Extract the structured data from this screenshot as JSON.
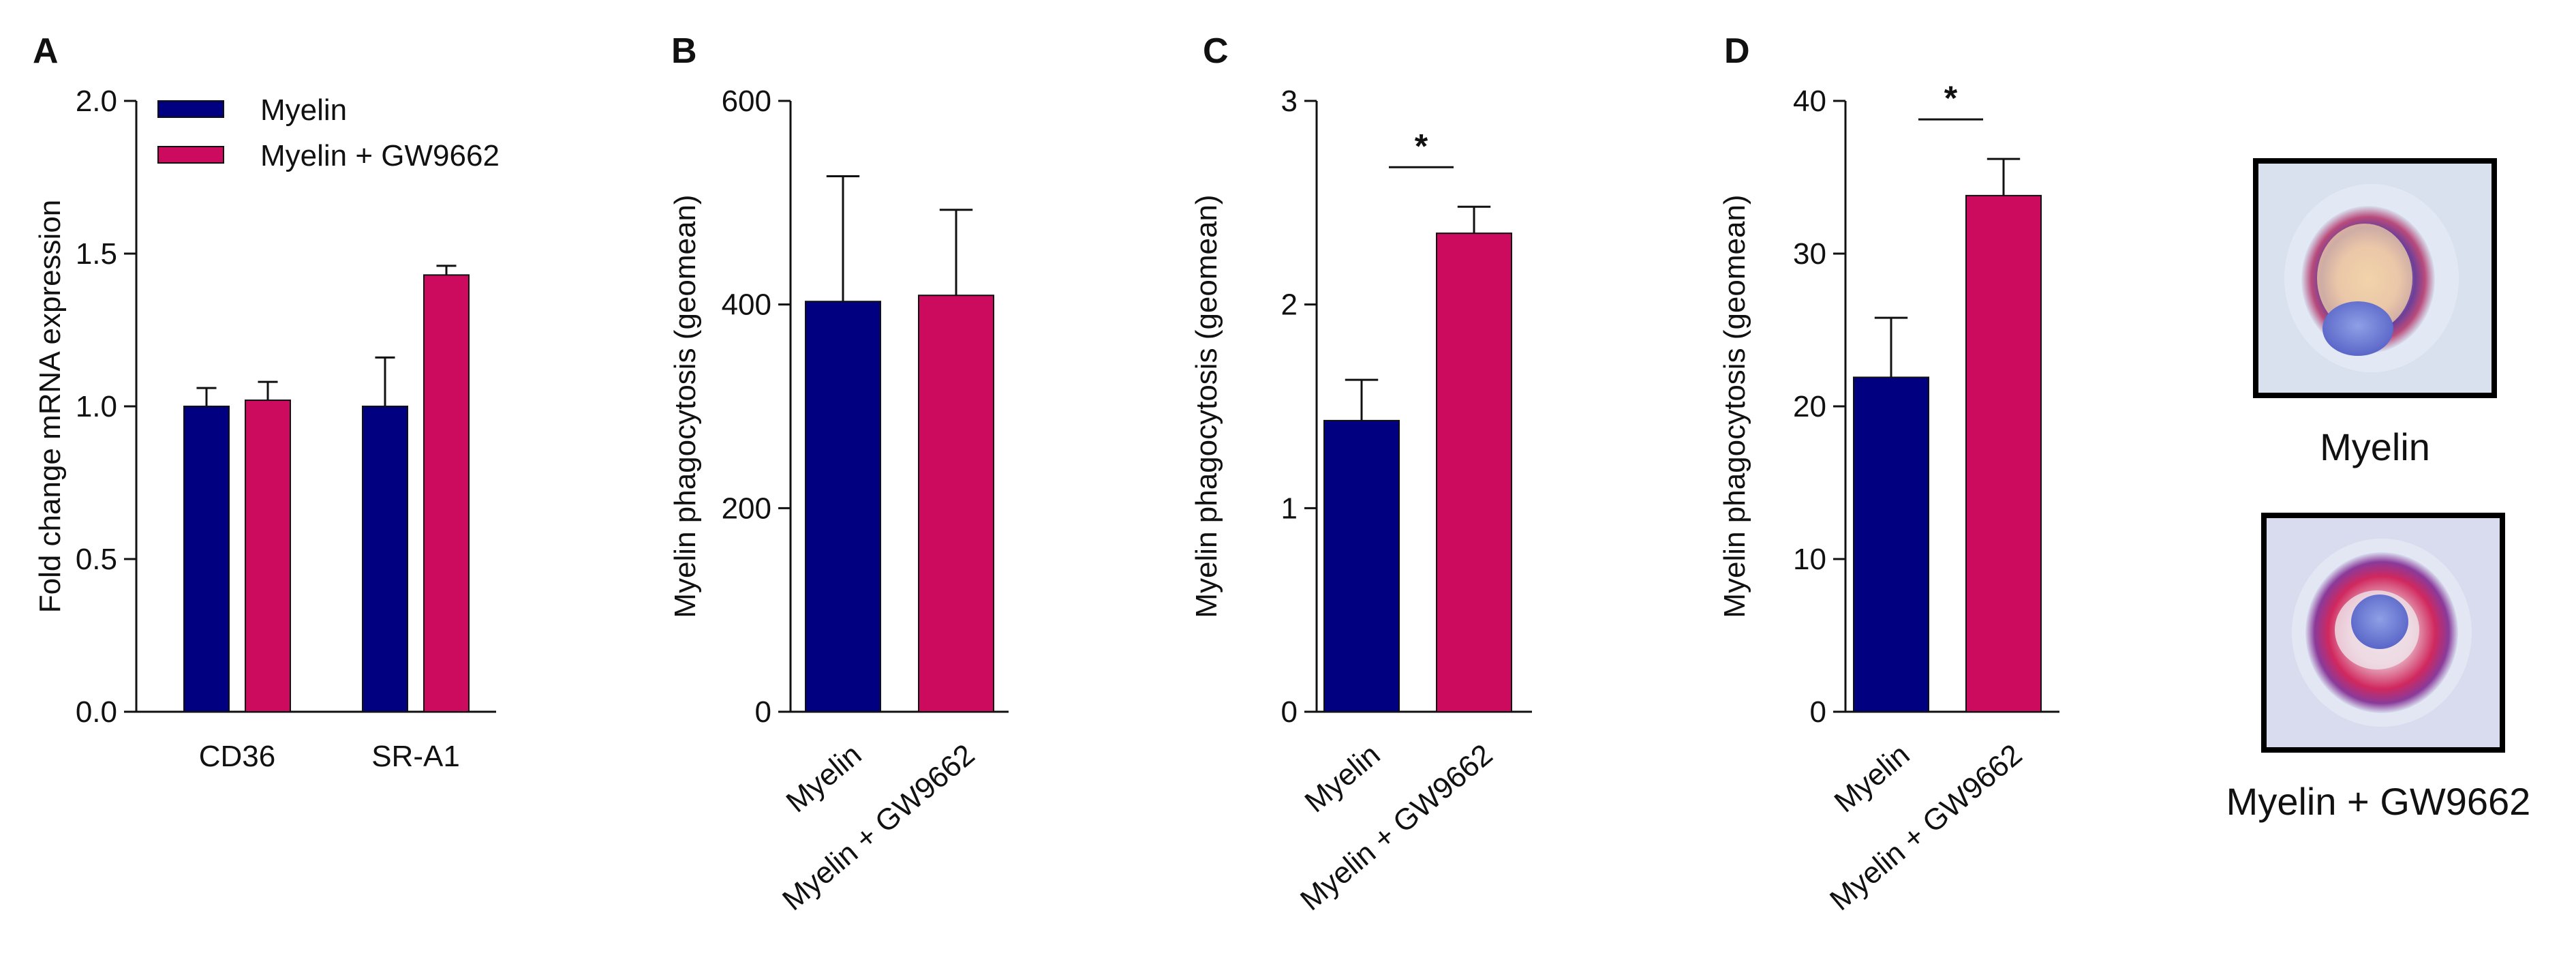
{
  "colors": {
    "myelin": "#000080",
    "myelin_gw": "#cc0a5e"
  },
  "legend": [
    "Myelin",
    "Myelin + GW9662"
  ],
  "panels": {
    "A": {
      "letter": "A"
    },
    "B": {
      "letter": "B"
    },
    "C": {
      "letter": "C"
    },
    "D": {
      "letter": "D"
    }
  },
  "images": {
    "myelin_caption": "Myelin",
    "myelin_gw_caption": "Myelin + GW9662"
  },
  "chart_data": [
    {
      "panel": "A",
      "type": "bar",
      "title": "",
      "ylabel": "Fold change mRNA expression",
      "xlabel": "",
      "ylim": [
        0,
        2.0
      ],
      "yticks": [
        0,
        0.5,
        1.0,
        1.5,
        2.0
      ],
      "ytick_labels": [
        "0.0",
        "0.5",
        "1.0",
        "1.5",
        "2.0"
      ],
      "categories": [
        "CD36",
        "SR-A1"
      ],
      "series": [
        {
          "name": "Myelin",
          "values": [
            1.0,
            1.0
          ],
          "errors": [
            0.06,
            0.16
          ]
        },
        {
          "name": "Myelin + GW9662",
          "values": [
            1.02,
            1.43
          ],
          "errors": [
            0.06,
            0.03
          ]
        }
      ],
      "legend": "top-left"
    },
    {
      "panel": "B",
      "type": "bar",
      "ylabel": "Myelin phagocytosis (geomean)",
      "ylim": [
        0,
        600
      ],
      "yticks": [
        0,
        200,
        400,
        600
      ],
      "ytick_labels": [
        "0",
        "200",
        "400",
        "600"
      ],
      "categories": [
        "Myelin",
        "Myelin + GW9662"
      ],
      "values": [
        403,
        409
      ],
      "errors": [
        123,
        84
      ],
      "significance": ""
    },
    {
      "panel": "C",
      "type": "bar",
      "ylabel": "Myelin phagocytosis (geomean)",
      "ylim": [
        0,
        3
      ],
      "yticks": [
        0,
        1,
        2,
        3
      ],
      "ytick_labels": [
        "0",
        "1",
        "2",
        "3"
      ],
      "categories": [
        "Myelin",
        "Myelin + GW9662"
      ],
      "values": [
        1.43,
        2.35
      ],
      "errors": [
        0.2,
        0.13
      ],
      "significance": "*"
    },
    {
      "panel": "D",
      "type": "bar",
      "ylabel": "Myelin phagocytosis (geomean)",
      "ylim": [
        0,
        40
      ],
      "yticks": [
        0,
        10,
        20,
        30,
        40
      ],
      "ytick_labels": [
        "0",
        "10",
        "20",
        "30",
        "40"
      ],
      "categories": [
        "Myelin",
        "Myelin + GW9662"
      ],
      "values": [
        21.9,
        33.8
      ],
      "errors": [
        3.9,
        2.4
      ],
      "significance": "*"
    }
  ]
}
